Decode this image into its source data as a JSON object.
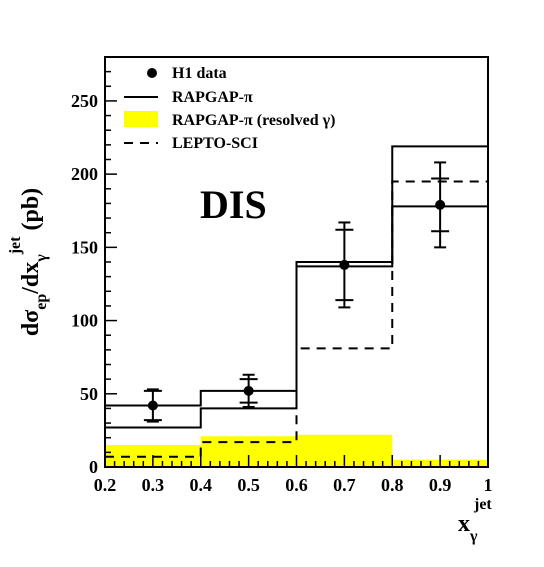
{
  "chart_data": {
    "type": "histogram",
    "title": "",
    "annotation": "DIS",
    "xlabel": "x_γ^jet",
    "ylabel": "dσ_ep/dx_γ^jet (pb)",
    "xlim": [
      0.2,
      1.0
    ],
    "ylim": [
      0,
      280
    ],
    "xticks": [
      0.2,
      0.3,
      0.4,
      0.5,
      0.6,
      0.7,
      0.8,
      0.9,
      1
    ],
    "yticks": [
      0,
      50,
      100,
      150,
      200,
      250
    ],
    "bins": [
      [
        0.2,
        0.4
      ],
      [
        0.4,
        0.6
      ],
      [
        0.6,
        0.8
      ],
      [
        0.8,
        1.0
      ]
    ],
    "legend_position": "top-left",
    "series": [
      {
        "name": "H1 data",
        "style": "points",
        "x": [
          0.3,
          0.5,
          0.7,
          0.9
        ],
        "y": [
          42,
          52,
          138,
          179
        ],
        "stat_err": [
          10,
          8,
          24,
          18
        ],
        "tot_err": [
          11,
          11,
          29,
          29
        ]
      },
      {
        "name": "RAPGAP-π",
        "style": "solid",
        "bands": [
          [
            27,
            42
          ],
          [
            40,
            52
          ],
          [
            137,
            140
          ],
          [
            178,
            219
          ]
        ]
      },
      {
        "name": "RAPGAP-π (resolved γ)",
        "style": "filled",
        "color": "#ffff00",
        "values": [
          15,
          21,
          22,
          5
        ]
      },
      {
        "name": "LEPTO-SCI",
        "style": "dashed",
        "values": [
          7,
          17,
          81,
          195
        ]
      }
    ]
  }
}
